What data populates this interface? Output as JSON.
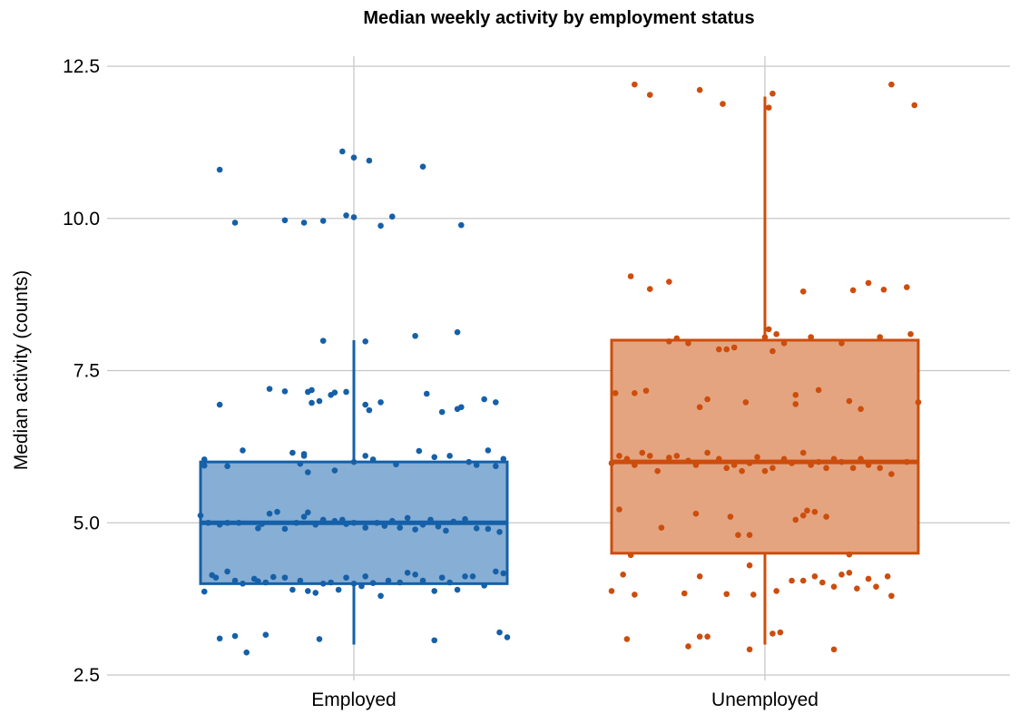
{
  "chart_data": {
    "type": "box",
    "title": "Median weekly activity by employment status",
    "xlabel": "",
    "ylabel": "Median activity (counts)",
    "ylim": [
      2.5,
      12.5
    ],
    "yticks": [
      "2.5",
      "5.0",
      "7.5",
      "10.0",
      "12.5"
    ],
    "categories": [
      "Employed",
      "Unemployed"
    ],
    "grid": true,
    "colors": {
      "Employed": "#1560a8",
      "Unemployed": "#cc4d0c"
    },
    "fill_colors": {
      "Employed": "#87aed4",
      "Unemployed": "#e4a480"
    },
    "boxes": [
      {
        "category": "Employed",
        "min": 3.0,
        "q1": 4.0,
        "median": 5.0,
        "q3": 6.0,
        "max": 8.0
      },
      {
        "category": "Unemployed",
        "min": 3.0,
        "q1": 4.5,
        "median": 6.0,
        "q3": 8.0,
        "max": 12.0
      }
    ],
    "points": {
      "Employed": [
        [
          -0.35,
          10.8
        ],
        [
          -0.31,
          9.93
        ],
        [
          0.18,
          10.85
        ],
        [
          0.28,
          9.89
        ],
        [
          -0.03,
          11.1
        ],
        [
          0.0,
          11.0
        ],
        [
          0.04,
          10.95
        ],
        [
          0.0,
          10.02
        ],
        [
          -0.02,
          10.05
        ],
        [
          -0.18,
          9.97
        ],
        [
          -0.13,
          9.93
        ],
        [
          -0.08,
          9.96
        ],
        [
          0.07,
          9.88
        ],
        [
          0.1,
          10.03
        ],
        [
          -0.08,
          7.99
        ],
        [
          0.03,
          7.98
        ],
        [
          0.16,
          8.07
        ],
        [
          0.27,
          8.13
        ],
        [
          -0.35,
          6.94
        ],
        [
          -0.22,
          7.2
        ],
        [
          -0.18,
          7.16
        ],
        [
          -0.12,
          7.15
        ],
        [
          -0.11,
          7.18
        ],
        [
          -0.06,
          7.1
        ],
        [
          -0.05,
          7.14
        ],
        [
          -0.11,
          6.97
        ],
        [
          -0.09,
          7.0
        ],
        [
          -0.02,
          7.15
        ],
        [
          0.03,
          6.94
        ],
        [
          0.04,
          6.85
        ],
        [
          0.07,
          6.98
        ],
        [
          0.19,
          7.12
        ],
        [
          0.23,
          6.82
        ],
        [
          0.28,
          6.9
        ],
        [
          0.27,
          6.87
        ],
        [
          0.34,
          7.03
        ],
        [
          0.37,
          6.98
        ],
        [
          -0.39,
          6.04
        ],
        [
          -0.39,
          5.94
        ],
        [
          -0.33,
          5.93
        ],
        [
          -0.29,
          6.19
        ],
        [
          -0.16,
          6.15
        ],
        [
          -0.13,
          6.13
        ],
        [
          -0.13,
          6.1
        ],
        [
          -0.14,
          5.97
        ],
        [
          -0.12,
          5.83
        ],
        [
          -0.05,
          5.86
        ],
        [
          0.0,
          6.0
        ],
        [
          0.03,
          6.1
        ],
        [
          0.05,
          6.04
        ],
        [
          0.11,
          5.96
        ],
        [
          0.17,
          6.18
        ],
        [
          0.21,
          6.08
        ],
        [
          0.25,
          6.1
        ],
        [
          0.3,
          6.0
        ],
        [
          0.32,
          5.95
        ],
        [
          0.35,
          6.19
        ],
        [
          0.37,
          5.93
        ],
        [
          0.39,
          6.05
        ],
        [
          -0.4,
          5.12
        ],
        [
          -0.38,
          5.0
        ],
        [
          -0.35,
          4.97
        ],
        [
          -0.33,
          5.0
        ],
        [
          -0.3,
          5.0
        ],
        [
          -0.25,
          4.91
        ],
        [
          -0.24,
          4.98
        ],
        [
          -0.22,
          5.15
        ],
        [
          -0.2,
          5.18
        ],
        [
          -0.18,
          4.9
        ],
        [
          -0.15,
          5.0
        ],
        [
          -0.13,
          5.1
        ],
        [
          -0.12,
          5.17
        ],
        [
          -0.1,
          4.97
        ],
        [
          -0.08,
          5.05
        ],
        [
          -0.05,
          5.03
        ],
        [
          -0.03,
          5.05
        ],
        [
          -0.02,
          4.98
        ],
        [
          0.0,
          5.0
        ],
        [
          0.03,
          4.92
        ],
        [
          0.06,
          5.0
        ],
        [
          0.08,
          4.95
        ],
        [
          0.1,
          5.03
        ],
        [
          0.12,
          4.92
        ],
        [
          0.14,
          5.08
        ],
        [
          0.16,
          4.89
        ],
        [
          0.18,
          4.97
        ],
        [
          0.2,
          5.05
        ],
        [
          0.22,
          4.94
        ],
        [
          0.24,
          4.87
        ],
        [
          0.26,
          5.02
        ],
        [
          0.29,
          5.06
        ],
        [
          0.32,
          4.91
        ],
        [
          0.35,
          4.9
        ],
        [
          0.38,
          4.85
        ],
        [
          -0.39,
          3.87
        ],
        [
          -0.37,
          4.14
        ],
        [
          -0.36,
          4.1
        ],
        [
          -0.33,
          4.2
        ],
        [
          -0.31,
          4.05
        ],
        [
          -0.29,
          4.0
        ],
        [
          -0.26,
          4.08
        ],
        [
          -0.25,
          4.04
        ],
        [
          -0.23,
          4.02
        ],
        [
          -0.21,
          4.11
        ],
        [
          -0.18,
          4.1
        ],
        [
          -0.16,
          3.9
        ],
        [
          -0.14,
          4.05
        ],
        [
          -0.12,
          3.88
        ],
        [
          -0.1,
          3.85
        ],
        [
          -0.08,
          4.0
        ],
        [
          -0.06,
          4.02
        ],
        [
          -0.04,
          3.9
        ],
        [
          -0.02,
          4.1
        ],
        [
          0.0,
          4.0
        ],
        [
          0.02,
          3.96
        ],
        [
          0.03,
          4.12
        ],
        [
          0.05,
          4.01
        ],
        [
          0.07,
          3.8
        ],
        [
          0.09,
          4.05
        ],
        [
          0.12,
          4.02
        ],
        [
          0.14,
          4.18
        ],
        [
          0.16,
          4.15
        ],
        [
          0.18,
          4.05
        ],
        [
          0.21,
          3.88
        ],
        [
          0.23,
          4.1
        ],
        [
          0.25,
          4.02
        ],
        [
          0.27,
          3.9
        ],
        [
          0.29,
          4.12
        ],
        [
          0.31,
          4.12
        ],
        [
          0.34,
          3.97
        ],
        [
          0.37,
          4.2
        ],
        [
          0.39,
          4.17
        ],
        [
          -0.35,
          3.1
        ],
        [
          -0.31,
          3.14
        ],
        [
          -0.28,
          2.87
        ],
        [
          -0.23,
          3.16
        ],
        [
          -0.09,
          3.09
        ],
        [
          0.21,
          3.07
        ],
        [
          0.38,
          3.2
        ],
        [
          0.4,
          3.12
        ]
      ],
      "Unemployed": [
        [
          -0.34,
          12.2
        ],
        [
          -0.3,
          12.03
        ],
        [
          -0.17,
          12.11
        ],
        [
          -0.11,
          11.88
        ],
        [
          0.02,
          12.05
        ],
        [
          0.01,
          11.82
        ],
        [
          0.33,
          12.2
        ],
        [
          0.39,
          11.86
        ],
        [
          -0.35,
          9.05
        ],
        [
          -0.3,
          8.84
        ],
        [
          -0.25,
          8.96
        ],
        [
          0.01,
          8.18
        ],
        [
          0.03,
          8.1
        ],
        [
          0.1,
          8.8
        ],
        [
          0.23,
          8.82
        ],
        [
          0.27,
          8.94
        ],
        [
          0.31,
          8.83
        ],
        [
          0.37,
          8.87
        ],
        [
          -0.39,
          7.13
        ],
        [
          -0.34,
          7.13
        ],
        [
          -0.31,
          7.17
        ],
        [
          -0.25,
          7.98
        ],
        [
          -0.23,
          8.03
        ],
        [
          -0.2,
          7.95
        ],
        [
          -0.17,
          6.9
        ],
        [
          -0.15,
          7.03
        ],
        [
          -0.12,
          7.85
        ],
        [
          -0.1,
          7.85
        ],
        [
          -0.08,
          7.88
        ],
        [
          -0.05,
          6.98
        ],
        [
          0.0,
          8.05
        ],
        [
          0.02,
          7.82
        ],
        [
          0.05,
          7.95
        ],
        [
          0.08,
          6.95
        ],
        [
          0.08,
          7.1
        ],
        [
          0.12,
          8.05
        ],
        [
          0.14,
          7.18
        ],
        [
          0.2,
          7.95
        ],
        [
          0.22,
          7.0
        ],
        [
          0.25,
          6.87
        ],
        [
          0.3,
          8.05
        ],
        [
          0.38,
          8.1
        ],
        [
          0.4,
          6.98
        ],
        [
          -0.4,
          5.98
        ],
        [
          -0.38,
          6.1
        ],
        [
          -0.36,
          6.05
        ],
        [
          -0.34,
          5.95
        ],
        [
          -0.32,
          6.15
        ],
        [
          -0.3,
          6.1
        ],
        [
          -0.28,
          5.85
        ],
        [
          -0.25,
          6.07
        ],
        [
          -0.23,
          6.1
        ],
        [
          -0.2,
          6.02
        ],
        [
          -0.18,
          5.95
        ],
        [
          -0.15,
          6.15
        ],
        [
          -0.12,
          6.05
        ],
        [
          -0.1,
          5.9
        ],
        [
          -0.08,
          5.95
        ],
        [
          -0.06,
          5.85
        ],
        [
          -0.04,
          5.98
        ],
        [
          -0.02,
          6.08
        ],
        [
          0.0,
          5.85
        ],
        [
          0.02,
          5.9
        ],
        [
          0.05,
          6.05
        ],
        [
          0.07,
          5.98
        ],
        [
          0.1,
          6.15
        ],
        [
          0.12,
          5.95
        ],
        [
          0.14,
          6.0
        ],
        [
          0.16,
          5.9
        ],
        [
          0.18,
          6.05
        ],
        [
          0.2,
          6.0
        ],
        [
          0.23,
          5.9
        ],
        [
          0.25,
          6.05
        ],
        [
          0.27,
          5.95
        ],
        [
          0.3,
          5.9
        ],
        [
          0.33,
          5.8
        ],
        [
          0.37,
          6.0
        ],
        [
          -0.38,
          5.22
        ],
        [
          -0.27,
          4.92
        ],
        [
          -0.18,
          5.15
        ],
        [
          -0.09,
          5.1
        ],
        [
          -0.07,
          4.8
        ],
        [
          -0.04,
          4.8
        ],
        [
          0.08,
          5.05
        ],
        [
          0.1,
          5.12
        ],
        [
          0.11,
          5.2
        ],
        [
          0.13,
          5.18
        ],
        [
          0.16,
          5.1
        ],
        [
          0.22,
          4.48
        ],
        [
          -0.35,
          4.47
        ],
        [
          -0.4,
          3.88
        ],
        [
          -0.37,
          4.15
        ],
        [
          -0.34,
          3.82
        ],
        [
          -0.21,
          3.84
        ],
        [
          -0.17,
          4.12
        ],
        [
          -0.1,
          3.83
        ],
        [
          -0.03,
          3.82
        ],
        [
          -0.04,
          4.3
        ],
        [
          0.03,
          3.88
        ],
        [
          0.07,
          4.05
        ],
        [
          0.1,
          4.05
        ],
        [
          0.13,
          4.12
        ],
        [
          0.15,
          4.02
        ],
        [
          0.18,
          3.95
        ],
        [
          0.2,
          4.15
        ],
        [
          0.22,
          4.18
        ],
        [
          0.24,
          3.92
        ],
        [
          0.27,
          4.08
        ],
        [
          0.29,
          3.95
        ],
        [
          0.32,
          4.12
        ],
        [
          0.33,
          3.8
        ],
        [
          -0.36,
          3.09
        ],
        [
          -0.17,
          3.13
        ],
        [
          -0.15,
          3.13
        ],
        [
          -0.2,
          2.97
        ],
        [
          -0.04,
          2.92
        ],
        [
          0.02,
          3.18
        ],
        [
          0.04,
          3.2
        ],
        [
          0.18,
          2.92
        ]
      ]
    }
  }
}
